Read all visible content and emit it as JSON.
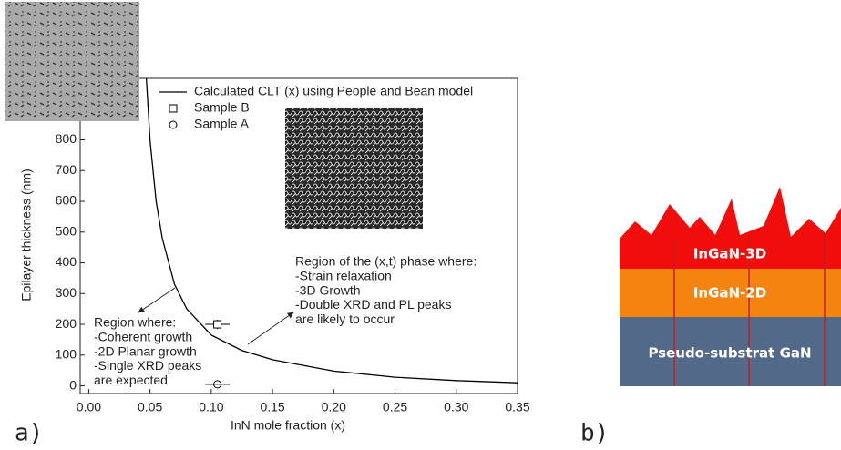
{
  "chart_data": {
    "type": "line",
    "panel_label": "a)",
    "xlabel": "InN mole fraction (x)",
    "ylabel": "Epilayer thickness (nm)",
    "xlim": [
      -0.007,
      0.35
    ],
    "ylim": [
      -25,
      1000
    ],
    "xticks": [
      {
        "value": 0,
        "label": "0.00"
      },
      {
        "value": 0.05,
        "label": "0.05"
      },
      {
        "value": 0.1,
        "label": "0.10"
      },
      {
        "value": 0.15,
        "label": "0.15"
      },
      {
        "value": 0.2,
        "label": "0.20"
      },
      {
        "value": 0.25,
        "label": "0.25"
      },
      {
        "value": 0.3,
        "label": "0.30"
      },
      {
        "value": 0.35,
        "label": "0.35"
      }
    ],
    "yticks": [
      0,
      100,
      200,
      300,
      400,
      500,
      600,
      700,
      800
    ],
    "series": [
      {
        "name": "Calculated CLT (x) using People and Bean model",
        "color": "#000000",
        "x": [
          0.047,
          0.05,
          0.055,
          0.06,
          0.07,
          0.08,
          0.1,
          0.125,
          0.15,
          0.2,
          0.25,
          0.3,
          0.35
        ],
        "values": [
          1000,
          800,
          600,
          480,
          330,
          250,
          165,
          115,
          85,
          48,
          28,
          17,
          10
        ]
      },
      {
        "name": "Sample B",
        "color": "#000000",
        "marker": "square",
        "x": [
          0.105
        ],
        "values": [
          200
        ],
        "xerr": [
          0.01
        ],
        "yerr": [
          15
        ]
      },
      {
        "name": "Sample A",
        "color": "#000000",
        "marker": "circle",
        "x": [
          0.105
        ],
        "values": [
          5
        ],
        "xerr": [
          0.01
        ]
      }
    ],
    "annotations": [
      {
        "lines": [
          "Region where:",
          "-Coherent growth",
          "-2D Planar growth",
          "-Single XRD peaks",
          "are expected"
        ]
      },
      {
        "lines": [
          "Region of the (x,t) phase where:",
          "-Strain relaxation",
          "-3D Growth",
          "-Double XRD and PL peaks",
          "are likely to occur"
        ]
      }
    ]
  },
  "diagram": {
    "panel_label": "b)",
    "layers": [
      {
        "label": "InGaN-3D"
      },
      {
        "label": "InGaN-2D"
      },
      {
        "label": "Pseudo-substrat GaN"
      }
    ]
  }
}
